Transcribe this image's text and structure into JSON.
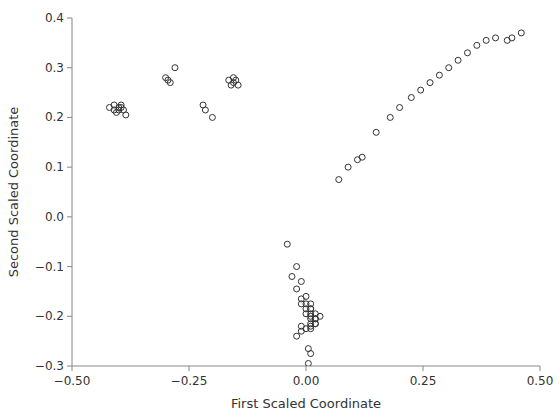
{
  "chart_data": {
    "type": "scatter",
    "x": [
      -0.42,
      -0.41,
      -0.41,
      -0.405,
      -0.4,
      -0.4,
      -0.395,
      -0.395,
      -0.39,
      -0.385,
      -0.3,
      -0.295,
      -0.29,
      -0.28,
      -0.22,
      -0.215,
      -0.2,
      -0.165,
      -0.16,
      -0.155,
      -0.155,
      -0.15,
      -0.145,
      -0.04,
      -0.02,
      -0.01,
      0.0,
      0.01,
      0.01,
      0.02,
      -0.03,
      -0.02,
      -0.01,
      0.0,
      0.0,
      0.01,
      0.01,
      0.02,
      0.03,
      -0.01,
      0.0,
      0.01,
      0.01,
      0.02,
      0.02,
      0.01,
      0.01,
      0.02,
      0.01,
      0.0,
      -0.01,
      -0.01,
      -0.02,
      0.005,
      0.01,
      0.005,
      0.07,
      0.09,
      0.11,
      0.12,
      0.15,
      0.18,
      0.2,
      0.225,
      0.245,
      0.265,
      0.285,
      0.305,
      0.325,
      0.345,
      0.365,
      0.385,
      0.405,
      0.43,
      0.44,
      0.46
    ],
    "y": [
      0.22,
      0.215,
      0.225,
      0.21,
      0.22,
      0.215,
      0.225,
      0.22,
      0.215,
      0.205,
      0.28,
      0.275,
      0.27,
      0.3,
      0.225,
      0.215,
      0.2,
      0.275,
      0.265,
      0.28,
      0.27,
      0.275,
      0.265,
      -0.055,
      -0.1,
      -0.13,
      -0.16,
      -0.185,
      -0.2,
      -0.215,
      -0.12,
      -0.145,
      -0.165,
      -0.175,
      -0.185,
      -0.185,
      -0.195,
      -0.205,
      -0.2,
      -0.175,
      -0.195,
      -0.205,
      -0.215,
      -0.205,
      -0.195,
      -0.22,
      -0.225,
      -0.215,
      -0.175,
      -0.225,
      -0.23,
      -0.22,
      -0.24,
      -0.265,
      -0.275,
      -0.295,
      0.075,
      0.1,
      0.115,
      0.12,
      0.17,
      0.2,
      0.22,
      0.24,
      0.255,
      0.27,
      0.285,
      0.3,
      0.315,
      0.33,
      0.345,
      0.355,
      0.36,
      0.355,
      0.36,
      0.37
    ],
    "xlabel": "First Scaled Coordinate",
    "ylabel": "Second Scaled Coordinate",
    "xlim": [
      -0.5,
      0.5
    ],
    "ylim": [
      -0.3,
      0.4
    ],
    "xticks": [
      {
        "value": -0.5,
        "label": "−0.50"
      },
      {
        "value": -0.25,
        "label": "−0.25"
      },
      {
        "value": 0,
        "label": "0.00"
      },
      {
        "value": 0.25,
        "label": "0.25"
      },
      {
        "value": 0.5,
        "label": "0.50"
      }
    ],
    "yticks": [
      {
        "value": -0.3,
        "label": "−0.3"
      },
      {
        "value": -0.2,
        "label": "−0.2"
      },
      {
        "value": -0.1,
        "label": "−0.1"
      },
      {
        "value": 0,
        "label": "0.0"
      },
      0.1,
      0.2,
      0.3,
      0.4
    ],
    "color": "#333333",
    "marker": "open-circle",
    "grid": false
  }
}
